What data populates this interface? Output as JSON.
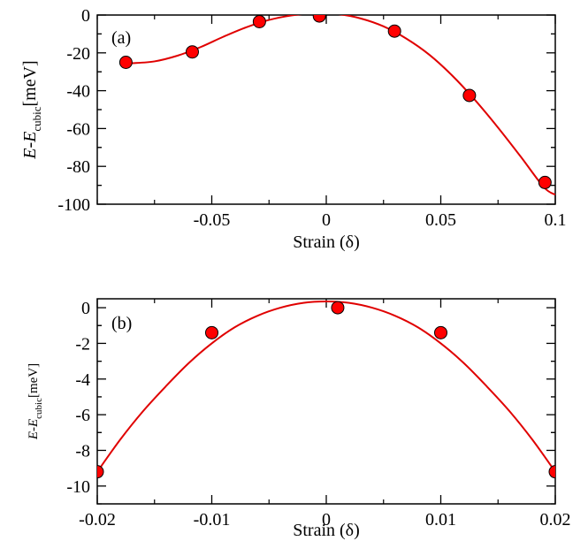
{
  "chart_data": [
    {
      "type": "scatter",
      "panel_label": "(a)",
      "title": "",
      "xlabel": "Strain (δ)",
      "ylabel": {
        "main": "E-E",
        "sub": "cubic",
        "unit": "[meV]"
      },
      "xlim": [
        -0.1,
        0.1
      ],
      "ylim": [
        -100,
        0
      ],
      "x_ticks": [
        -0.05,
        0,
        0.05,
        0.1
      ],
      "x_tick_labels": [
        "-0.05",
        "0",
        "0.05",
        "0.1"
      ],
      "y_ticks": [
        -100,
        -80,
        -60,
        -40,
        -20,
        0
      ],
      "y_tick_labels": [
        "-100",
        "-80",
        "-60",
        "-40",
        "-20",
        "0"
      ],
      "grid": false,
      "marker_color": "#ff0000",
      "line_color": "#e00000",
      "points": [
        {
          "x": -0.0875,
          "y": -25
        },
        {
          "x": -0.0585,
          "y": -19.5
        },
        {
          "x": -0.0292,
          "y": -3.5
        },
        {
          "x": -0.003,
          "y": -0.5
        },
        {
          "x": 0.0298,
          "y": -8.5
        },
        {
          "x": 0.0625,
          "y": -42.5
        },
        {
          "x": 0.0955,
          "y": -88.5
        }
      ],
      "fit": [
        {
          "x": -0.085,
          "y": -25.5
        },
        {
          "x": -0.075,
          "y": -24.5
        },
        {
          "x": -0.065,
          "y": -21.5
        },
        {
          "x": -0.055,
          "y": -17
        },
        {
          "x": -0.045,
          "y": -11.5
        },
        {
          "x": -0.035,
          "y": -6.5
        },
        {
          "x": -0.025,
          "y": -2.6
        },
        {
          "x": -0.015,
          "y": -0.2
        },
        {
          "x": -0.005,
          "y": 0.9
        },
        {
          "x": 0.005,
          "y": 0.5
        },
        {
          "x": 0.015,
          "y": -1.8
        },
        {
          "x": 0.025,
          "y": -6
        },
        {
          "x": 0.035,
          "y": -12.5
        },
        {
          "x": 0.045,
          "y": -21
        },
        {
          "x": 0.055,
          "y": -32
        },
        {
          "x": 0.065,
          "y": -45
        },
        {
          "x": 0.075,
          "y": -59.5
        },
        {
          "x": 0.085,
          "y": -75
        },
        {
          "x": 0.095,
          "y": -91
        },
        {
          "x": 0.1,
          "y": -95
        }
      ]
    },
    {
      "type": "scatter",
      "panel_label": "(b)",
      "title": "",
      "xlabel": "Strain (δ)",
      "ylabel": {
        "main": "E-E",
        "sub": "cubic",
        "unit": "[meV]"
      },
      "xlim": [
        -0.02,
        0.02
      ],
      "ylim": [
        -11,
        0.5
      ],
      "x_ticks": [
        -0.02,
        -0.01,
        0,
        0.01,
        0.02
      ],
      "x_tick_labels": [
        "-0.02",
        "-0.01",
        "0",
        "0.01",
        "0.02"
      ],
      "y_ticks": [
        -10,
        -8,
        -6,
        -4,
        -2,
        0
      ],
      "y_tick_labels": [
        "-10",
        "-8",
        "-6",
        "-4",
        "-2",
        "0"
      ],
      "grid": false,
      "marker_color": "#ff0000",
      "line_color": "#e00000",
      "points": [
        {
          "x": -0.02,
          "y": -9.2
        },
        {
          "x": -0.01,
          "y": -1.4
        },
        {
          "x": 0.001,
          "y": 0
        },
        {
          "x": 0.01,
          "y": -1.4
        },
        {
          "x": 0.02,
          "y": -9.2
        }
      ],
      "fit": [
        {
          "x": -0.02,
          "y": -9.2
        },
        {
          "x": -0.018,
          "y": -7.4
        },
        {
          "x": -0.016,
          "y": -5.8
        },
        {
          "x": -0.014,
          "y": -4.4
        },
        {
          "x": -0.012,
          "y": -3.1
        },
        {
          "x": -0.01,
          "y": -2.0
        },
        {
          "x": -0.008,
          "y": -1.1
        },
        {
          "x": -0.006,
          "y": -0.45
        },
        {
          "x": -0.004,
          "y": 0.0
        },
        {
          "x": -0.002,
          "y": 0.27
        },
        {
          "x": 0,
          "y": 0.35
        },
        {
          "x": 0.002,
          "y": 0.27
        },
        {
          "x": 0.004,
          "y": 0.0
        },
        {
          "x": 0.006,
          "y": -0.45
        },
        {
          "x": 0.008,
          "y": -1.1
        },
        {
          "x": 0.01,
          "y": -2.0
        },
        {
          "x": 0.012,
          "y": -3.1
        },
        {
          "x": 0.014,
          "y": -4.4
        },
        {
          "x": 0.016,
          "y": -5.8
        },
        {
          "x": 0.018,
          "y": -7.4
        },
        {
          "x": 0.02,
          "y": -9.2
        }
      ]
    }
  ]
}
